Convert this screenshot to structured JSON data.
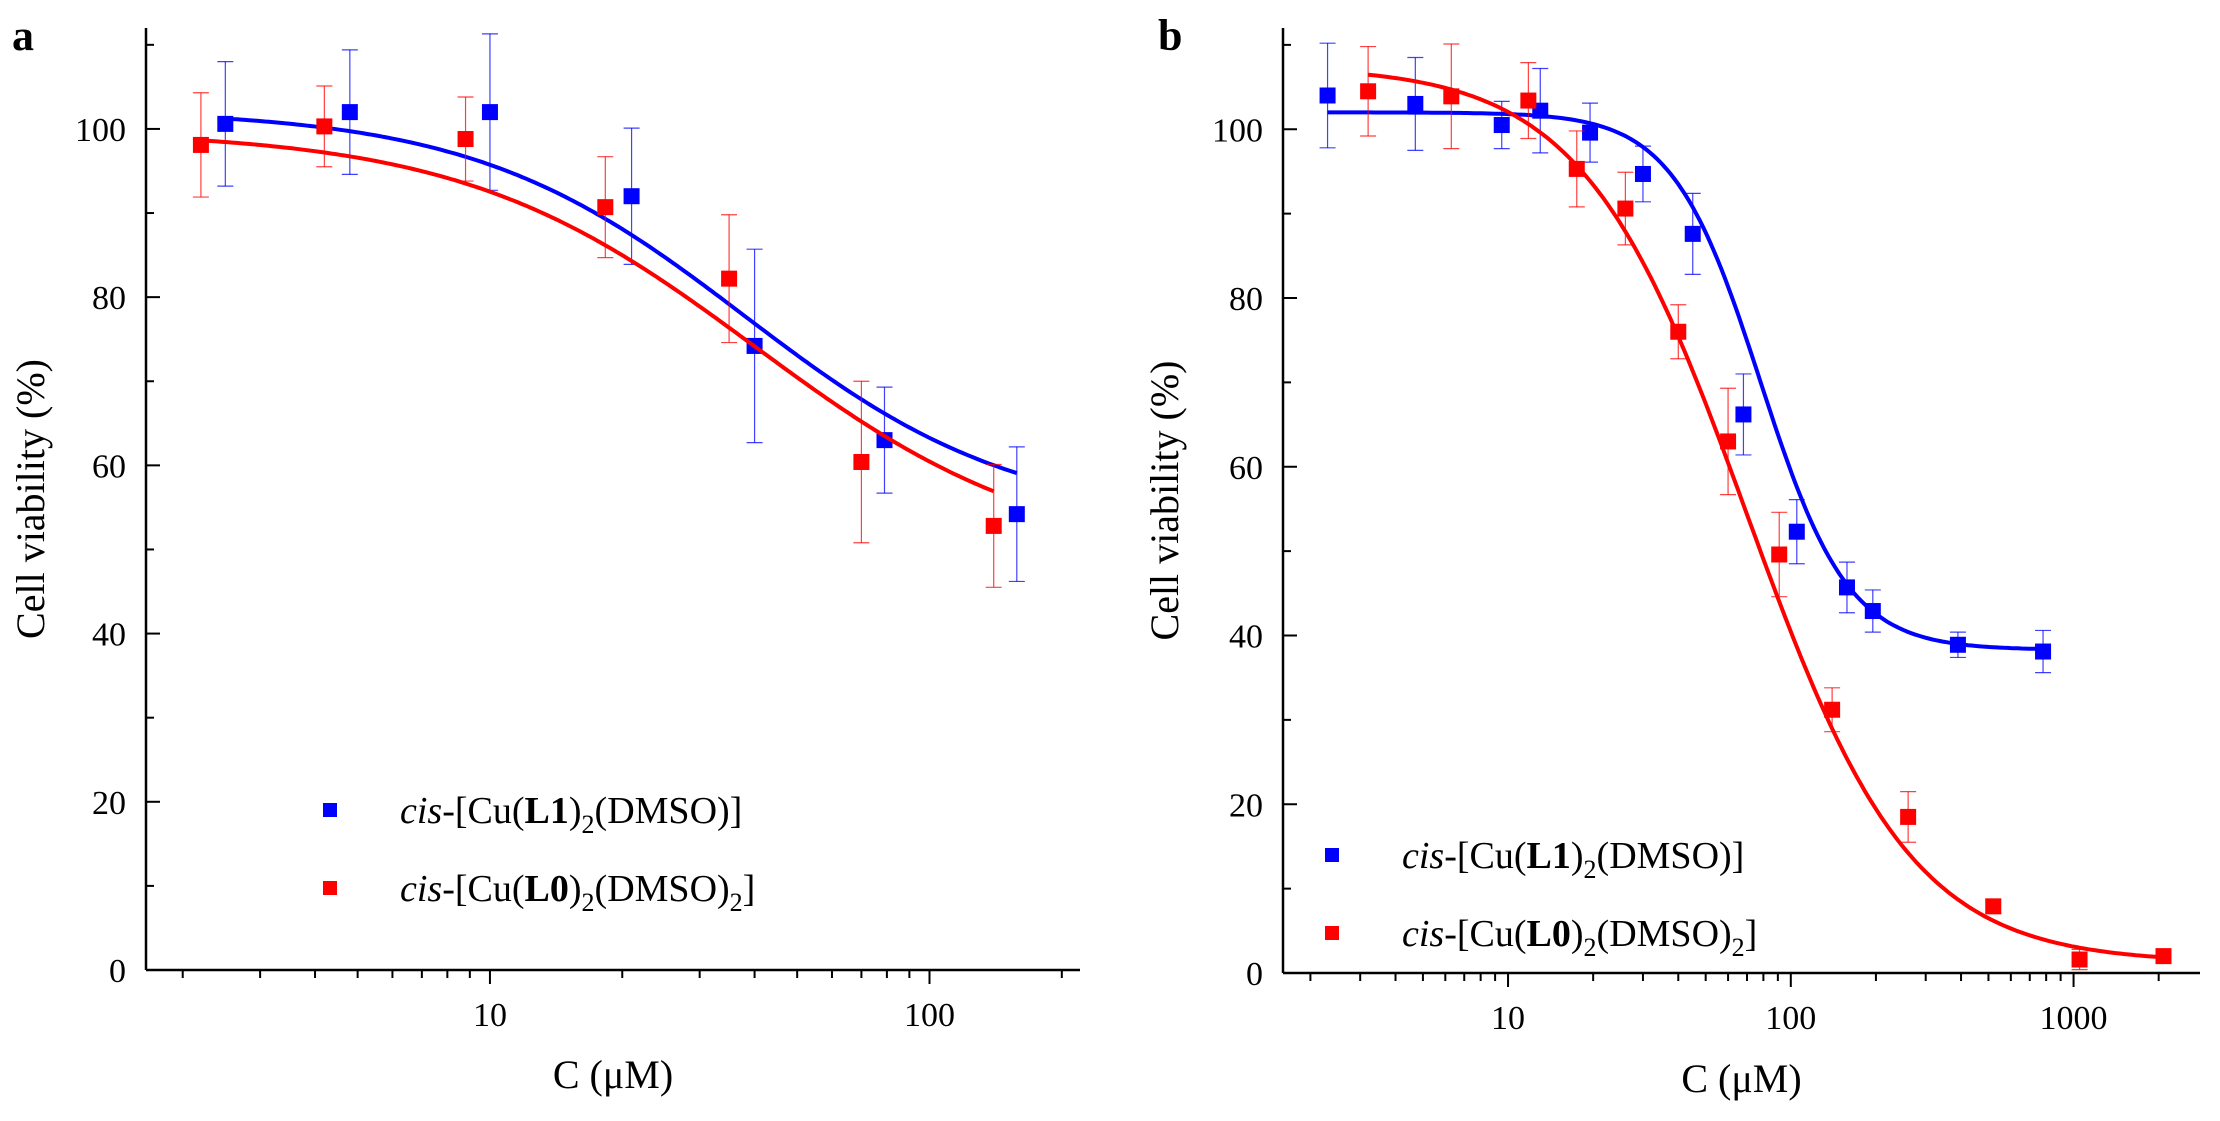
{
  "chart_data": [
    {
      "type": "scatter",
      "panel": "a",
      "xlabel": "C (μM)",
      "ylabel": "Cell viability (%)",
      "xscale": "log",
      "xlim": [
        1.65,
        220
      ],
      "ylim": [
        0,
        112
      ],
      "xticks": [
        10,
        100
      ],
      "yticks": [
        0,
        20,
        40,
        60,
        80,
        100
      ],
      "legend_position": "lower-left",
      "series": [
        {
          "name": "cis-[Cu(L1)2(DMSO)]",
          "name_parts": {
            "italic": "cis",
            "pre": "-[Cu(",
            "bold": "L1",
            "sub1": "2",
            "mid": "(DMSO)]",
            "sub2": ""
          },
          "color": "#0000ff",
          "x": [
            2.5,
            4.8,
            10,
            21,
            40,
            79,
            158
          ],
          "y": [
            100.6,
            102,
            102,
            92,
            74.2,
            63,
            54.2
          ],
          "err": [
            7.4,
            7.4,
            9.3,
            8.1,
            11.5,
            6.3,
            8
          ],
          "fit": {
            "top": 102.3,
            "bottom": 53.2,
            "ec50": 38,
            "hill": 1.4
          }
        },
        {
          "name": "cis-[Cu(L0)2(DMSO)2]",
          "name_parts": {
            "italic": "cis",
            "pre": "-[Cu(",
            "bold": "L0",
            "sub1": "2",
            "mid": "(DMSO)",
            "sub2": "2",
            "post": "]"
          },
          "color": "#ff0000",
          "x": [
            2.2,
            4.2,
            8.8,
            18.3,
            35,
            70,
            140
          ],
          "y": [
            98.1,
            100.3,
            98.8,
            90.7,
            82.2,
            60.4,
            52.8
          ],
          "err": [
            6.2,
            4.8,
            5,
            6,
            7.6,
            9.6,
            7.3
          ],
          "fit": {
            "top": 99.8,
            "bottom": 48.5,
            "ec50": 40,
            "hill": 1.3
          }
        }
      ]
    },
    {
      "type": "scatter",
      "panel": "b",
      "xlabel": "C (μM)",
      "ylabel": "Cell viability (%)",
      "xscale": "log",
      "xlim": [
        1.6,
        2800
      ],
      "ylim": [
        0,
        112
      ],
      "xticks": [
        10,
        100,
        1000
      ],
      "yticks": [
        0,
        20,
        40,
        60,
        80,
        100
      ],
      "legend_position": "lower-left",
      "series": [
        {
          "name": "cis-[Cu(L1)2(DMSO)]",
          "name_parts": {
            "italic": "cis",
            "pre": "-[Cu(",
            "bold": "L1",
            "sub1": "2",
            "mid": "(DMSO)]",
            "sub2": ""
          },
          "color": "#0000ff",
          "x": [
            2.3,
            4.7,
            9.5,
            13,
            19.5,
            30,
            45,
            68,
            105,
            158,
            195,
            390,
            780
          ],
          "y": [
            104,
            103,
            100.5,
            102.2,
            99.6,
            94.7,
            87.6,
            66.2,
            52.3,
            45.7,
            42.9,
            38.9,
            38.1
          ],
          "err": [
            6.2,
            5.5,
            2.8,
            5,
            3.5,
            3.3,
            4.8,
            4.8,
            3.8,
            3,
            2.5,
            1.5,
            2.5
          ],
          "fit": {
            "top": 102,
            "bottom": 38.3,
            "ec50": 78,
            "hill": 2.8
          }
        },
        {
          "name": "cis-[Cu(L0)2(DMSO)2]",
          "name_parts": {
            "italic": "cis",
            "pre": "-[Cu(",
            "bold": "L0",
            "sub1": "2",
            "mid": "(DMSO)",
            "sub2": "2",
            "post": "]"
          },
          "color": "#ff0000",
          "x": [
            3.2,
            6.3,
            11.8,
            17.5,
            26,
            40,
            60,
            91,
            140,
            260,
            520,
            1050,
            2080
          ],
          "y": [
            104.5,
            103.9,
            103.4,
            95.3,
            90.6,
            76,
            63,
            49.6,
            31.2,
            18.5,
            7.9,
            1.6,
            2
          ],
          "err": [
            5.3,
            6.2,
            4.5,
            4.5,
            4.3,
            3.2,
            6.3,
            5,
            2.6,
            3,
            0.8,
            1.2,
            0.5
          ],
          "fit": {
            "top": 107.5,
            "bottom": 1.2,
            "ec50": 70,
            "hill": 1.5
          }
        }
      ]
    }
  ]
}
